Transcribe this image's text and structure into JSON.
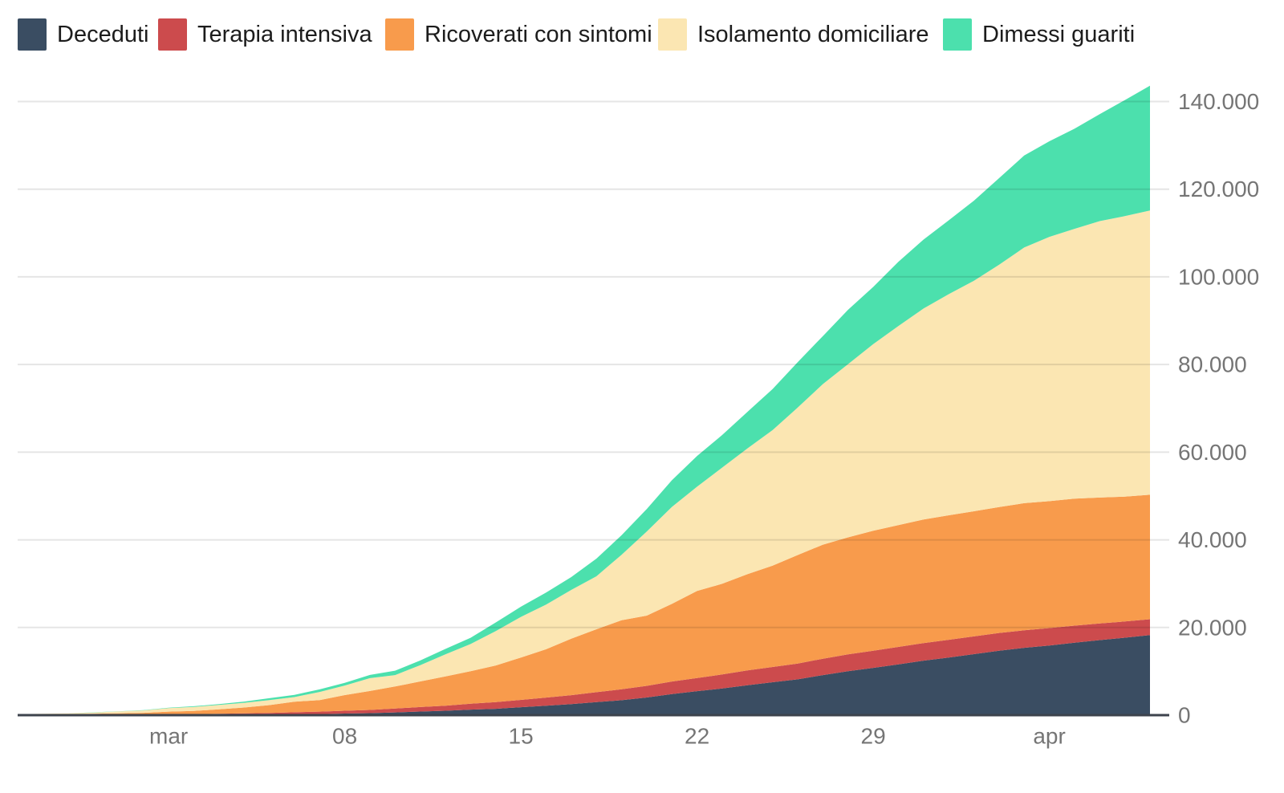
{
  "page": {
    "background": "#ffffff"
  },
  "legend": {
    "items": [
      {
        "label": "Deceduti",
        "color": "#3a4d62"
      },
      {
        "label": "Terapia intensiva",
        "color": "#cc4b4d"
      },
      {
        "label": "Ricoverati con sintomi",
        "color": "#f89b4c"
      },
      {
        "label": "Isolamento domiciliare",
        "color": "#fbe6b2"
      },
      {
        "label": "Dimessi guariti",
        "color": "#4ce0ad"
      }
    ]
  },
  "chart_data": {
    "type": "area",
    "stacked": true,
    "title": "",
    "xlabel": "",
    "ylabel": "",
    "grid": true,
    "legend_position": "top",
    "x_type": "date",
    "ylim": [
      0,
      144000
    ],
    "x": [
      "2020-02-24",
      "2020-02-25",
      "2020-02-26",
      "2020-02-27",
      "2020-02-28",
      "2020-02-29",
      "2020-03-01",
      "2020-03-02",
      "2020-03-03",
      "2020-03-04",
      "2020-03-05",
      "2020-03-06",
      "2020-03-07",
      "2020-03-08",
      "2020-03-09",
      "2020-03-10",
      "2020-03-11",
      "2020-03-12",
      "2020-03-13",
      "2020-03-14",
      "2020-03-15",
      "2020-03-16",
      "2020-03-17",
      "2020-03-18",
      "2020-03-19",
      "2020-03-20",
      "2020-03-21",
      "2020-03-22",
      "2020-03-23",
      "2020-03-24",
      "2020-03-25",
      "2020-03-26",
      "2020-03-27",
      "2020-03-28",
      "2020-03-29",
      "2020-03-30",
      "2020-03-31",
      "2020-04-01",
      "2020-04-02",
      "2020-04-03",
      "2020-04-04",
      "2020-04-05",
      "2020-04-06",
      "2020-04-07",
      "2020-04-08",
      "2020-04-09"
    ],
    "series": [
      {
        "name": "Deceduti",
        "color": "#3a4d62",
        "values": [
          7,
          10,
          12,
          17,
          21,
          29,
          34,
          52,
          79,
          107,
          148,
          197,
          233,
          366,
          463,
          631,
          827,
          1016,
          1266,
          1441,
          1809,
          2158,
          2503,
          2978,
          3405,
          4032,
          4825,
          5476,
          6077,
          6820,
          7503,
          8165,
          9134,
          10023,
          10779,
          11591,
          12428,
          13155,
          13915,
          14681,
          15362,
          15887,
          16523,
          17127,
          17669,
          18279
        ]
      },
      {
        "name": "Terapia intensiva",
        "color": "#cc4b4d",
        "values": [
          26,
          35,
          36,
          56,
          64,
          105,
          140,
          166,
          229,
          295,
          351,
          462,
          567,
          650,
          733,
          877,
          1028,
          1153,
          1328,
          1518,
          1672,
          1851,
          2060,
          2257,
          2498,
          2655,
          2857,
          3009,
          3204,
          3396,
          3489,
          3612,
          3732,
          3856,
          3906,
          3981,
          4023,
          4035,
          4053,
          4068,
          3994,
          3977,
          3898,
          3792,
          3693,
          3605
        ]
      },
      {
        "name": "Ricoverati con sintomi",
        "color": "#f89b4c",
        "values": [
          101,
          114,
          128,
          248,
          345,
          401,
          639,
          742,
          1034,
          1346,
          1790,
          2394,
          2651,
          3557,
          4316,
          5038,
          5838,
          6650,
          7426,
          8372,
          9663,
          11025,
          12894,
          14363,
          15757,
          16020,
          17708,
          19846,
          20692,
          21937,
          23112,
          24753,
          26029,
          26676,
          27386,
          27795,
          28192,
          28403,
          28540,
          28741,
          29010,
          28949,
          28976,
          28718,
          28485,
          28399
        ]
      },
      {
        "name": "Isolamento domiciliare",
        "color": "#fbe6b2",
        "values": [
          94,
          162,
          221,
          284,
          412,
          543,
          798,
          927,
          1000,
          1065,
          1155,
          1060,
          1843,
          2180,
          2936,
          2599,
          3724,
          5036,
          6201,
          7860,
          9268,
          10197,
          11108,
          12090,
          14935,
          19185,
          22116,
          23783,
          26522,
          28697,
          30920,
          33648,
          36653,
          39533,
          42588,
          45420,
          48134,
          50456,
          52579,
          55270,
          58320,
          60313,
          61557,
          63084,
          63998,
          64873
        ]
      },
      {
        "name": "Dimessi guariti",
        "color": "#4ce0ad",
        "values": [
          1,
          1,
          3,
          45,
          46,
          50,
          83,
          149,
          160,
          276,
          414,
          523,
          589,
          622,
          724,
          1004,
          1045,
          1258,
          1439,
          1966,
          2335,
          2749,
          2941,
          4025,
          4440,
          5129,
          6072,
          7024,
          7432,
          8326,
          9362,
          10361,
          10950,
          12384,
          13030,
          14620,
          15729,
          16847,
          18278,
          19758,
          20996,
          21815,
          22837,
          24392,
          26491,
          28470
        ]
      }
    ],
    "x_ticks": [
      {
        "date": "2020-03-01",
        "label": "mar"
      },
      {
        "date": "2020-03-08",
        "label": "08"
      },
      {
        "date": "2020-03-15",
        "label": "15"
      },
      {
        "date": "2020-03-22",
        "label": "22"
      },
      {
        "date": "2020-03-29",
        "label": "29"
      },
      {
        "date": "2020-04-05",
        "label": "apr"
      }
    ],
    "y_ticks": [
      {
        "value": 0,
        "label": "0"
      },
      {
        "value": 20000,
        "label": "20.000"
      },
      {
        "value": 40000,
        "label": "40.000"
      },
      {
        "value": 60000,
        "label": "60.000"
      },
      {
        "value": 80000,
        "label": "80.000"
      },
      {
        "value": 100000,
        "label": "100.000"
      },
      {
        "value": 120000,
        "label": "120.000"
      },
      {
        "value": 140000,
        "label": "140.000"
      }
    ],
    "styles": {
      "grid_color": "#e0e0e0",
      "axis_line_color": "#3d434d",
      "tick_label_color": "#757575",
      "legend_text_color": "#1c1c1c"
    }
  }
}
